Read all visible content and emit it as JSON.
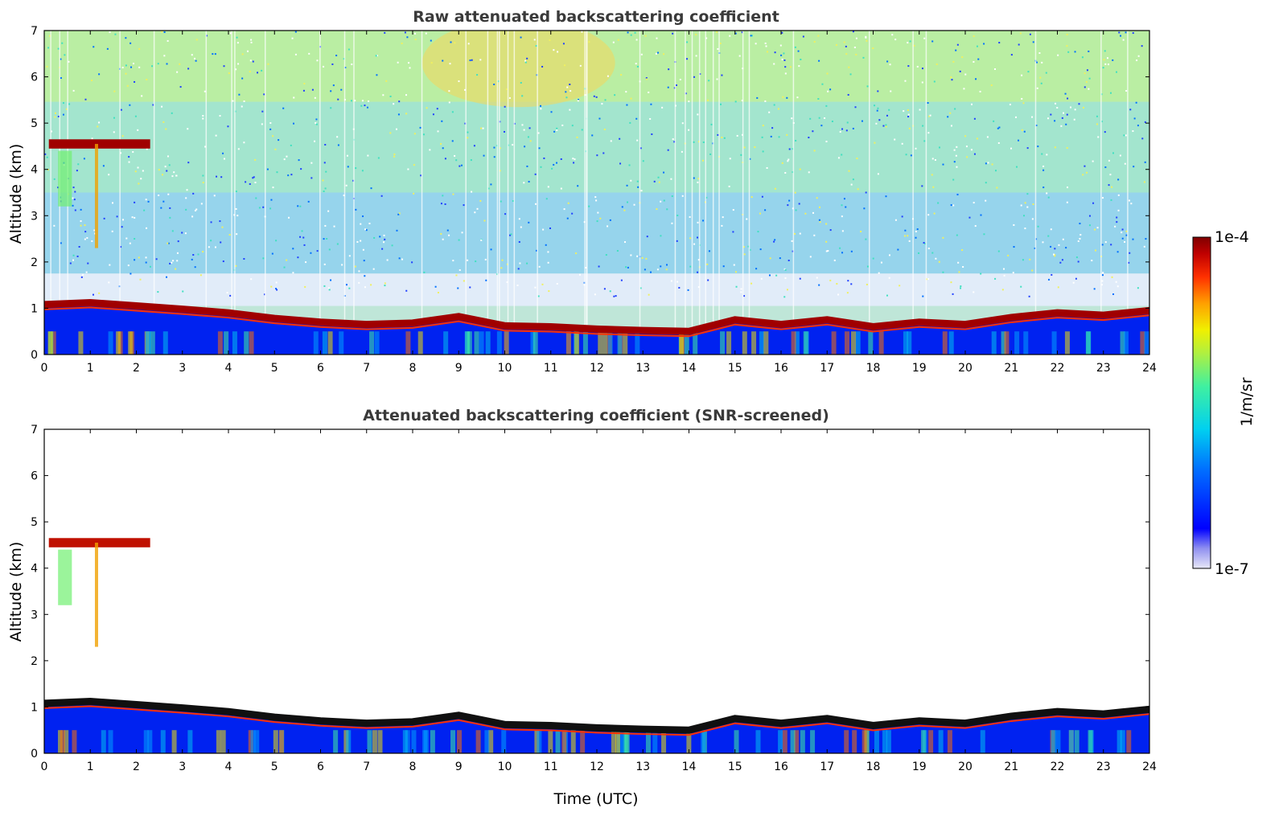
{
  "chart_data": [
    {
      "type": "heatmap",
      "title": "Raw attenuated backscattering coefficient",
      "xlabel": "",
      "ylabel": "Altitude (km)",
      "xlim": [
        0,
        24
      ],
      "ylim": [
        0,
        7
      ],
      "x_ticks": [
        "0",
        "1",
        "2",
        "3",
        "4",
        "5",
        "6",
        "7",
        "8",
        "9",
        "10",
        "11",
        "12",
        "13",
        "14",
        "15",
        "16",
        "17",
        "18",
        "19",
        "20",
        "21",
        "22",
        "23",
        "24"
      ],
      "y_ticks": [
        "0",
        "1",
        "2",
        "3",
        "4",
        "5",
        "6",
        "7"
      ],
      "features": {
        "cloud_base_km": [
          [
            0,
            1.08
          ],
          [
            1,
            1.12
          ],
          [
            2,
            1.05
          ],
          [
            3,
            0.98
          ],
          [
            4,
            0.9
          ],
          [
            5,
            0.78
          ],
          [
            6,
            0.7
          ],
          [
            7,
            0.65
          ],
          [
            8,
            0.68
          ],
          [
            9,
            0.82
          ],
          [
            10,
            0.62
          ],
          [
            11,
            0.6
          ],
          [
            12,
            0.55
          ],
          [
            13,
            0.52
          ],
          [
            14,
            0.5
          ],
          [
            15,
            0.75
          ],
          [
            16,
            0.65
          ],
          [
            17,
            0.75
          ],
          [
            18,
            0.6
          ],
          [
            19,
            0.7
          ],
          [
            20,
            0.65
          ],
          [
            21,
            0.8
          ],
          [
            22,
            0.9
          ],
          [
            23,
            0.85
          ],
          [
            24,
            0.95
          ]
        ],
        "upper_cloud": {
          "x_start": 0.1,
          "x_end": 2.3,
          "altitude_km": 4.55
        }
      }
    },
    {
      "type": "heatmap",
      "title": "Attenuated backscattering coefficient (SNR-screened)",
      "xlabel": "Time (UTC)",
      "ylabel": "Altitude (km)",
      "xlim": [
        0,
        24
      ],
      "ylim": [
        0,
        7
      ],
      "x_ticks": [
        "0",
        "1",
        "2",
        "3",
        "4",
        "5",
        "6",
        "7",
        "8",
        "9",
        "10",
        "11",
        "12",
        "13",
        "14",
        "15",
        "16",
        "17",
        "18",
        "19",
        "20",
        "21",
        "22",
        "23",
        "24"
      ],
      "y_ticks": [
        "0",
        "1",
        "2",
        "3",
        "4",
        "5",
        "6",
        "7"
      ],
      "features": {
        "cloud_base_km": [
          [
            0,
            1.08
          ],
          [
            1,
            1.12
          ],
          [
            2,
            1.05
          ],
          [
            3,
            0.98
          ],
          [
            4,
            0.9
          ],
          [
            5,
            0.78
          ],
          [
            6,
            0.7
          ],
          [
            7,
            0.65
          ],
          [
            8,
            0.68
          ],
          [
            9,
            0.82
          ],
          [
            10,
            0.62
          ],
          [
            11,
            0.6
          ],
          [
            12,
            0.55
          ],
          [
            13,
            0.52
          ],
          [
            14,
            0.5
          ],
          [
            15,
            0.75
          ],
          [
            16,
            0.65
          ],
          [
            17,
            0.75
          ],
          [
            18,
            0.6
          ],
          [
            19,
            0.7
          ],
          [
            20,
            0.65
          ],
          [
            21,
            0.8
          ],
          [
            22,
            0.9
          ],
          [
            23,
            0.85
          ],
          [
            24,
            0.95
          ]
        ],
        "upper_cloud": {
          "x_start": 0.1,
          "x_end": 2.3,
          "altitude_km": 4.55
        }
      }
    }
  ],
  "colorbar": {
    "label": "1/m/sr",
    "max_label": "1e-4",
    "min_label": "1e-7",
    "colors": [
      "#e8e8f8",
      "#b0b0f0",
      "#7070f0",
      "#0000ff",
      "#0060ff",
      "#00b0ff",
      "#00e0e0",
      "#40f0a0",
      "#a0f050",
      "#f0f000",
      "#ffb000",
      "#ff5000",
      "#e00000",
      "#800000"
    ]
  }
}
